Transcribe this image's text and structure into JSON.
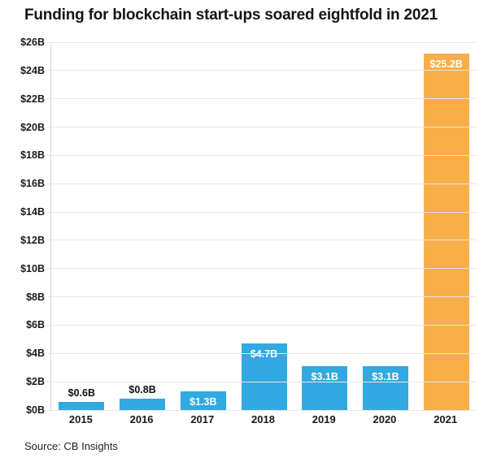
{
  "source_note": "Source: CB Insights",
  "chart_data": {
    "type": "bar",
    "title": "Funding for blockchain start-ups soared eightfold in 2021",
    "categories": [
      "2015",
      "2016",
      "2017",
      "2018",
      "2019",
      "2020",
      "2021"
    ],
    "values": [
      0.6,
      0.8,
      1.3,
      4.7,
      3.1,
      3.1,
      25.2
    ],
    "data_labels": [
      "$0.6B",
      "$0.8B",
      "$1.3B",
      "$4.7B",
      "$3.1B",
      "$3.1B",
      "$25.2B"
    ],
    "bar_colors": [
      "#32A9E0",
      "#32A9E0",
      "#32A9E0",
      "#32A9E0",
      "#32A9E0",
      "#32A9E0",
      "#F8AF49"
    ],
    "accent_blue": "#32A9E0",
    "accent_orange": "#F8AF49",
    "xlabel": "",
    "ylabel": "",
    "ylim": [
      0,
      26
    ],
    "ytick_step": 2,
    "ytick_labels": [
      "$0B",
      "$2B",
      "$4B",
      "$6B",
      "$8B",
      "$10B",
      "$12B",
      "$14B",
      "$16B",
      "$18B",
      "$20B",
      "$22B",
      "$24B",
      "$26B"
    ],
    "grid": true,
    "legend": false,
    "source": "Source: CB Insights"
  }
}
